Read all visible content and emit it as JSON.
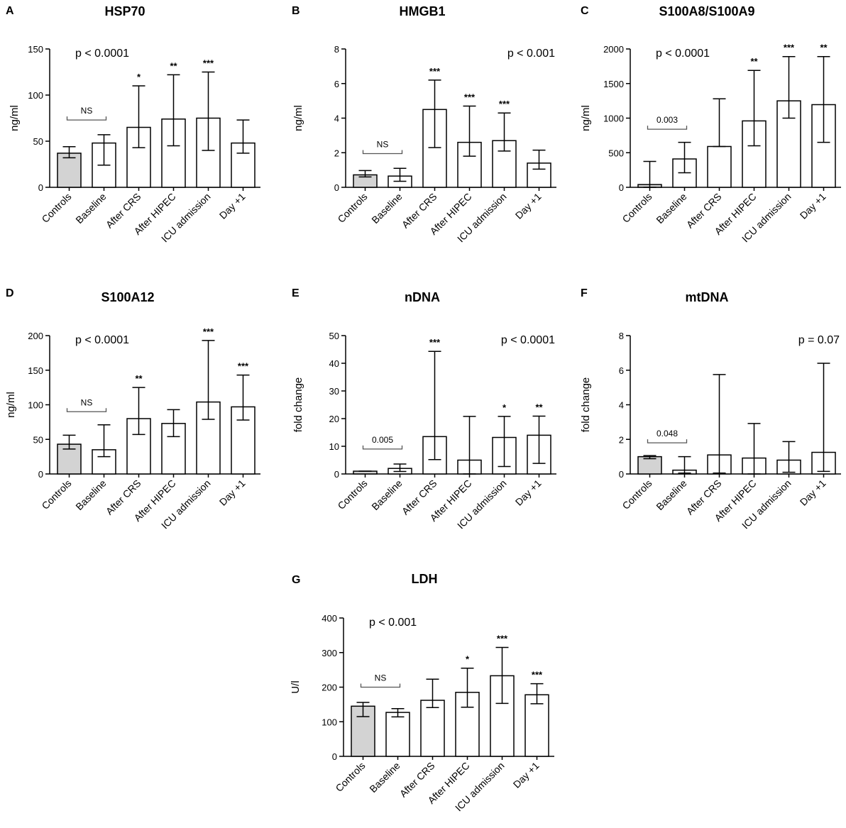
{
  "figure": {
    "description_panels": [
      "A",
      "B",
      "C",
      "D",
      "E",
      "F",
      "G"
    ]
  },
  "chart_data": [
    {
      "type": "bar",
      "letter": "A",
      "title": "HSP70",
      "ylabel": "ng/ml",
      "categories": [
        "Controls",
        "Baseline",
        "After CRS",
        "After HIPEC",
        "ICU admission",
        "Day +1"
      ],
      "values": [
        37,
        48,
        65,
        74,
        75,
        48
      ],
      "error_low": [
        32,
        24,
        43,
        45,
        40,
        37
      ],
      "error_high": [
        44,
        57,
        110,
        122,
        125,
        73
      ],
      "significance": [
        "",
        "",
        "*",
        "**",
        "***",
        ""
      ],
      "ylim": [
        0,
        150
      ],
      "yticks": [
        0,
        50,
        100,
        150
      ],
      "pvalue": "p < 0.0001",
      "pvalue_position": "top-left",
      "bracket": {
        "from": "Controls",
        "to": "Baseline",
        "label": "NS",
        "at": 73
      },
      "highlight_color": "#d3d3d3"
    },
    {
      "type": "bar",
      "letter": "B",
      "title": "HMGB1",
      "ylabel": "ng/ml",
      "categories": [
        "Controls",
        "Baseline",
        "After CRS",
        "After HIPEC",
        "ICU admission",
        "Day +1"
      ],
      "values": [
        0.72,
        0.65,
        4.5,
        2.6,
        2.7,
        1.4
      ],
      "error_low": [
        0.6,
        0.35,
        2.3,
        1.8,
        2.1,
        1.05
      ],
      "error_high": [
        0.97,
        1.1,
        6.2,
        4.7,
        4.3,
        2.15
      ],
      "significance": [
        "",
        "",
        "***",
        "***",
        "***",
        ""
      ],
      "ylim": [
        0,
        8
      ],
      "yticks": [
        0,
        2,
        4,
        6,
        8
      ],
      "pvalue": "p < 0.001",
      "pvalue_position": "top-right",
      "bracket": {
        "from": "Controls",
        "to": "Baseline",
        "label": "NS",
        "at": 1.95
      },
      "highlight_color": "#d3d3d3"
    },
    {
      "type": "bar",
      "letter": "C",
      "title": "S100A8/S100A9",
      "ylabel": "ng/ml",
      "categories": [
        "Controls",
        "Baseline",
        "After CRS",
        "After HIPEC",
        "ICU admission",
        "Day +1"
      ],
      "values": [
        40,
        410,
        590,
        960,
        1250,
        1195
      ],
      "error_low": [
        0,
        210,
        590,
        600,
        1000,
        650
      ],
      "error_high": [
        375,
        650,
        1280,
        1690,
        1890,
        1890
      ],
      "significance": [
        "",
        "",
        "",
        "**",
        "***",
        "**"
      ],
      "ylim": [
        0,
        2000
      ],
      "yticks": [
        0,
        500,
        1000,
        1500,
        2000
      ],
      "pvalue": "p < 0.0001",
      "pvalue_position": "top-left",
      "bracket": {
        "from": "Controls",
        "to": "Baseline",
        "label": "0.003",
        "at": 840
      },
      "highlight_color": "#d3d3d3"
    },
    {
      "type": "bar",
      "letter": "D",
      "title": "S100A12",
      "ylabel": "ng/ml",
      "categories": [
        "Controls",
        "Baseline",
        "After CRS",
        "After HIPEC",
        "ICU admission",
        "Day +1"
      ],
      "values": [
        43,
        35,
        80,
        73,
        104,
        97
      ],
      "error_low": [
        36,
        25,
        57,
        54,
        79,
        78
      ],
      "error_high": [
        56,
        71,
        125,
        93,
        193,
        143
      ],
      "significance": [
        "",
        "",
        "**",
        "",
        "***",
        "***"
      ],
      "ylim": [
        0,
        200
      ],
      "yticks": [
        0,
        50,
        100,
        150,
        200
      ],
      "pvalue": "p < 0.0001",
      "pvalue_position": "top-left",
      "bracket": {
        "from": "Controls",
        "to": "Baseline",
        "label": "NS",
        "at": 90
      },
      "highlight_color": "#d3d3d3"
    },
    {
      "type": "bar",
      "letter": "E",
      "title": "nDNA",
      "ylabel": "fold change",
      "categories": [
        "Controls",
        "Baseline",
        "After CRS",
        "After HIPEC",
        "ICU admission",
        "Day +1"
      ],
      "values": [
        1,
        2,
        13.5,
        5,
        13.2,
        14
      ],
      "error_low": [
        1,
        0.9,
        5.2,
        0,
        2.7,
        3.8
      ],
      "error_high": [
        1,
        3.6,
        44.3,
        20.8,
        20.8,
        20.9
      ],
      "significance": [
        "",
        "",
        "***",
        "",
        "*",
        "**"
      ],
      "ylim": [
        0,
        50
      ],
      "yticks": [
        0,
        10,
        20,
        30,
        40,
        50
      ],
      "pvalue": "p < 0.0001",
      "pvalue_position": "top-right",
      "bracket": {
        "from": "Controls",
        "to": "Baseline",
        "label": "0.005",
        "at": 9
      },
      "highlight_color": "#d3d3d3"
    },
    {
      "type": "bar",
      "letter": "F",
      "title": "mtDNA",
      "ylabel": "fold change",
      "categories": [
        "Controls",
        "Baseline",
        "After CRS",
        "After HIPEC",
        "ICU admission",
        "Day +1"
      ],
      "values": [
        1,
        0.22,
        1.1,
        0.92,
        0.8,
        1.25
      ],
      "error_low": [
        0.88,
        0.05,
        0.05,
        0,
        0.1,
        0.15
      ],
      "error_high": [
        1.06,
        1.0,
        5.75,
        2.92,
        1.87,
        6.4
      ],
      "significance": [
        "",
        "",
        "",
        "",
        "",
        ""
      ],
      "ylim": [
        0,
        8
      ],
      "yticks": [
        0,
        2,
        4,
        6,
        8
      ],
      "pvalue": "p = 0.07",
      "pvalue_position": "top-right",
      "bracket": {
        "from": "Controls",
        "to": "Baseline",
        "label": "0.048",
        "at": 1.8
      },
      "highlight_color": "#d3d3d3"
    },
    {
      "type": "bar",
      "letter": "G",
      "title": "LDH",
      "ylabel": "U/l",
      "categories": [
        "Controls",
        "Baseline",
        "After CRS",
        "After HIPEC",
        "ICU admission",
        "Day +1"
      ],
      "values": [
        145,
        127,
        162,
        185,
        233,
        178
      ],
      "error_low": [
        115,
        114,
        141,
        142,
        153,
        152
      ],
      "error_high": [
        156,
        138,
        223,
        255,
        315,
        210
      ],
      "significance": [
        "",
        "",
        "",
        "*",
        "***",
        "***"
      ],
      "ylim": [
        0,
        400
      ],
      "yticks": [
        0,
        100,
        200,
        300,
        400
      ],
      "pvalue": "p < 0.001",
      "pvalue_position": "top-left",
      "bracket": {
        "from": "Controls",
        "to": "Baseline",
        "label": "NS",
        "at": 200
      },
      "highlight_color": "#d3d3d3"
    }
  ]
}
